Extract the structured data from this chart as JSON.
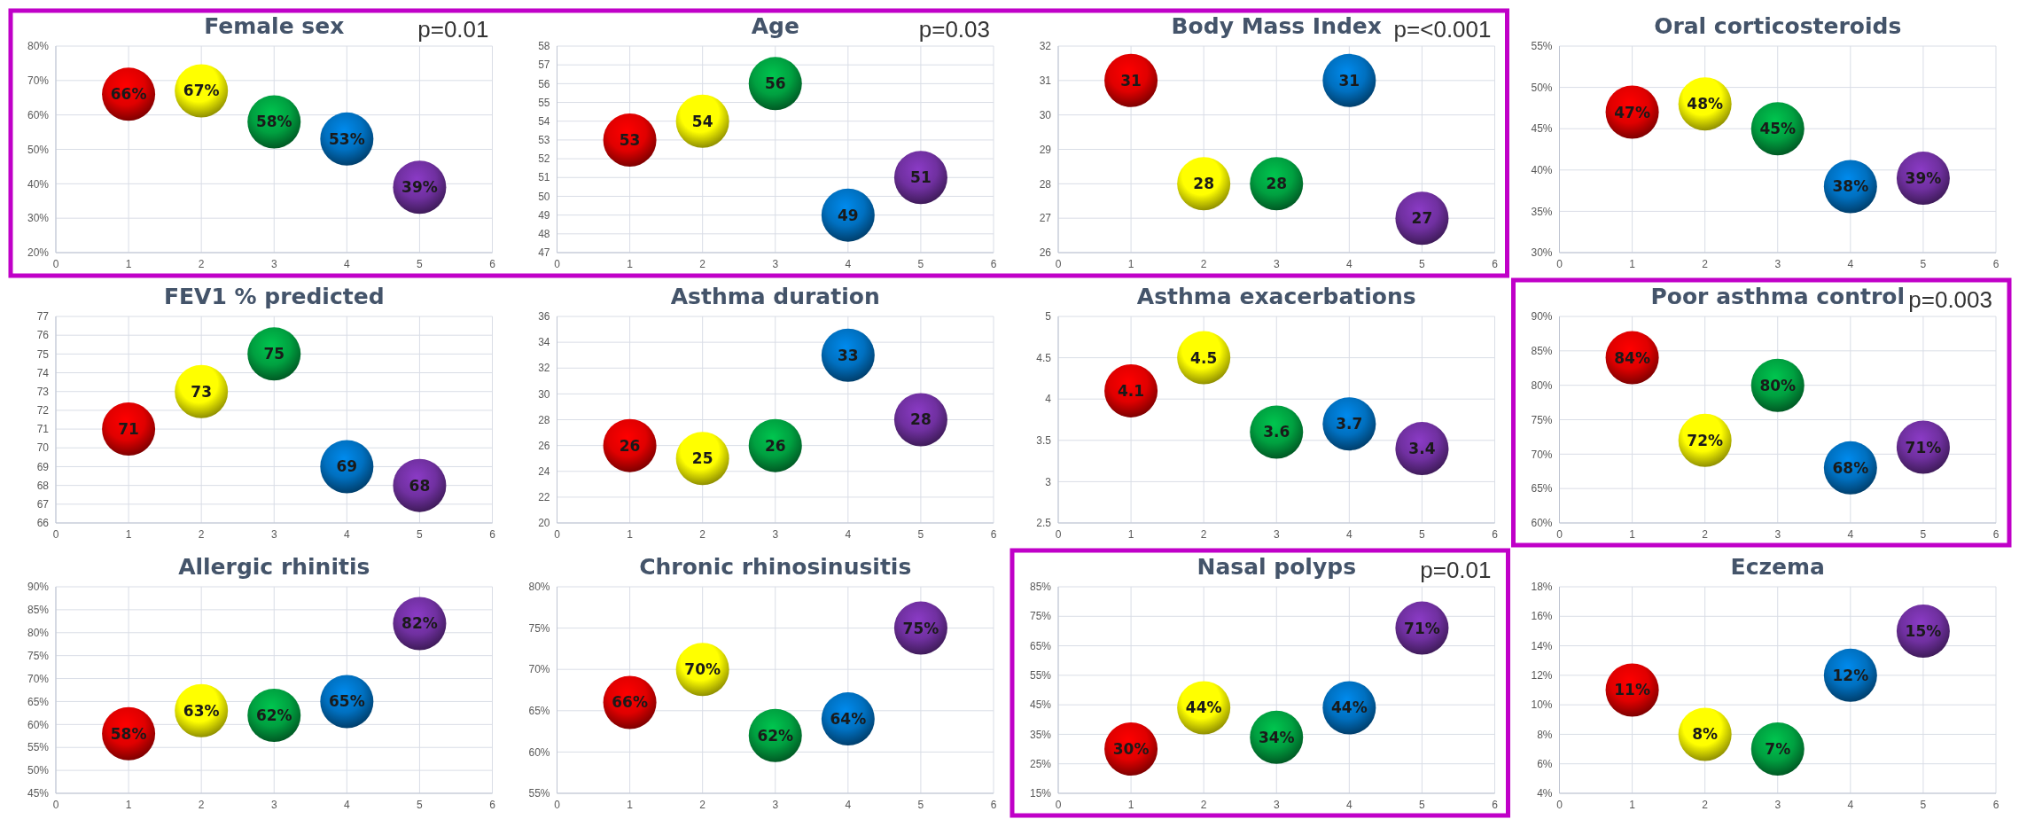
{
  "chart_data": [
    {
      "type": "scatter",
      "title": "Female sex",
      "x": [
        1,
        2,
        3,
        4,
        5
      ],
      "xlim": [
        0,
        6
      ],
      "xticks": [
        0,
        1,
        2,
        3,
        4,
        5,
        6
      ],
      "ylim": [
        20,
        80
      ],
      "yticks": [
        {
          "value": 20,
          "label": "20%"
        },
        {
          "value": 30,
          "label": "30%"
        },
        {
          "value": 40,
          "label": "40%"
        },
        {
          "value": 50,
          "label": "50%"
        },
        {
          "value": 60,
          "label": "60%"
        },
        {
          "value": 70,
          "label": "70%"
        },
        {
          "value": 80,
          "label": "80%"
        }
      ],
      "grid": true,
      "marker": "circle",
      "annotations": [
        "p=0.01"
      ],
      "series": [
        {
          "colors": [
            "#e00000",
            "#ffff00",
            "#00a040",
            "#0070c0",
            "#7030a0"
          ],
          "values": [
            66,
            67,
            58,
            53,
            39
          ],
          "value_labels": [
            "66%",
            "67%",
            "58%",
            "53%",
            "39%"
          ]
        }
      ]
    },
    {
      "type": "scatter",
      "title": "Age",
      "x": [
        1,
        2,
        3,
        4,
        5
      ],
      "xlim": [
        0,
        6
      ],
      "xticks": [
        0,
        1,
        2,
        3,
        4,
        5,
        6
      ],
      "ylim": [
        47,
        58
      ],
      "yticks": [
        47,
        48,
        49,
        50,
        51,
        52,
        53,
        54,
        55,
        56,
        57,
        58
      ],
      "grid": true,
      "marker": "circle",
      "annotations": [
        "p=0.03"
      ],
      "series": [
        {
          "colors": [
            "#e00000",
            "#ffff00",
            "#00a040",
            "#0070c0",
            "#7030a0"
          ],
          "values": [
            53,
            54,
            56,
            49,
            51
          ],
          "value_labels": [
            "53",
            "54",
            "56",
            "49",
            "51"
          ]
        }
      ]
    },
    {
      "type": "scatter",
      "title": "Body Mass Index",
      "x": [
        1,
        2,
        3,
        4,
        5
      ],
      "xlim": [
        0,
        6
      ],
      "xticks": [
        0,
        1,
        2,
        3,
        4,
        5,
        6
      ],
      "ylim": [
        26,
        32
      ],
      "yticks": [
        26,
        27,
        28,
        29,
        30,
        31,
        32
      ],
      "grid": true,
      "marker": "circle",
      "annotations": [
        "p=<0.001"
      ],
      "series": [
        {
          "colors": [
            "#e00000",
            "#ffff00",
            "#00a040",
            "#0070c0",
            "#7030a0"
          ],
          "values": [
            31,
            28,
            28,
            31,
            27
          ],
          "value_labels": [
            "31",
            "28",
            "28",
            "31",
            "27"
          ]
        }
      ]
    },
    {
      "type": "scatter",
      "title": "Oral corticosteroids",
      "x": [
        1,
        2,
        3,
        4,
        5
      ],
      "xlim": [
        0,
        6
      ],
      "xticks": [
        0,
        1,
        2,
        3,
        4,
        5,
        6
      ],
      "ylim": [
        30,
        55
      ],
      "yticks": [
        {
          "value": 30,
          "label": "30%"
        },
        {
          "value": 35,
          "label": "35%"
        },
        {
          "value": 40,
          "label": "40%"
        },
        {
          "value": 45,
          "label": "45%"
        },
        {
          "value": 50,
          "label": "50%"
        },
        {
          "value": 55,
          "label": "55%"
        }
      ],
      "grid": true,
      "marker": "circle",
      "series": [
        {
          "colors": [
            "#e00000",
            "#ffff00",
            "#00a040",
            "#0070c0",
            "#7030a0"
          ],
          "values": [
            47,
            48,
            45,
            38,
            39
          ],
          "value_labels": [
            "47%",
            "48%",
            "45%",
            "38%",
            "39%"
          ]
        }
      ]
    },
    {
      "type": "scatter",
      "title": "FEV1 % predicted",
      "x": [
        1,
        2,
        3,
        4,
        5
      ],
      "xlim": [
        0,
        6
      ],
      "xticks": [
        0,
        1,
        2,
        3,
        4,
        5,
        6
      ],
      "ylim": [
        66,
        77
      ],
      "yticks": [
        66,
        67,
        68,
        69,
        70,
        71,
        72,
        73,
        74,
        75,
        76,
        77
      ],
      "grid": true,
      "marker": "circle",
      "series": [
        {
          "colors": [
            "#e00000",
            "#ffff00",
            "#00a040",
            "#0070c0",
            "#7030a0"
          ],
          "values": [
            71,
            73,
            75,
            69,
            68
          ],
          "value_labels": [
            "71",
            "73",
            "75",
            "69",
            "68"
          ]
        }
      ]
    },
    {
      "type": "scatter",
      "title": "Asthma duration",
      "x": [
        1,
        2,
        3,
        4,
        5
      ],
      "xlim": [
        0,
        6
      ],
      "xticks": [
        0,
        1,
        2,
        3,
        4,
        5,
        6
      ],
      "ylim": [
        20,
        36
      ],
      "yticks": [
        20,
        22,
        24,
        26,
        28,
        30,
        32,
        34,
        36
      ],
      "grid": true,
      "marker": "circle",
      "series": [
        {
          "colors": [
            "#e00000",
            "#ffff00",
            "#00a040",
            "#0070c0",
            "#7030a0"
          ],
          "values": [
            26,
            25,
            26,
            33,
            28
          ],
          "value_labels": [
            "26",
            "25",
            "26",
            "33",
            "28"
          ]
        }
      ]
    },
    {
      "type": "scatter",
      "title": "Asthma exacerbations",
      "x": [
        1,
        2,
        3,
        4,
        5
      ],
      "xlim": [
        0,
        6
      ],
      "xticks": [
        0,
        1,
        2,
        3,
        4,
        5,
        6
      ],
      "ylim": [
        2.5,
        5
      ],
      "yticks": [
        2.5,
        3,
        3.5,
        4,
        4.5,
        5
      ],
      "grid": true,
      "marker": "circle",
      "series": [
        {
          "colors": [
            "#e00000",
            "#ffff00",
            "#00a040",
            "#0070c0",
            "#7030a0"
          ],
          "values": [
            4.1,
            4.5,
            3.6,
            3.7,
            3.4
          ],
          "value_labels": [
            "4.1",
            "4.5",
            "3.6",
            "3.7",
            "3.4"
          ]
        }
      ]
    },
    {
      "type": "scatter",
      "title": "Poor asthma control",
      "x": [
        1,
        2,
        3,
        4,
        5
      ],
      "xlim": [
        0,
        6
      ],
      "xticks": [
        0,
        1,
        2,
        3,
        4,
        5,
        6
      ],
      "ylim": [
        60,
        90
      ],
      "yticks": [
        {
          "value": 60,
          "label": "60%"
        },
        {
          "value": 65,
          "label": "65%"
        },
        {
          "value": 70,
          "label": "70%"
        },
        {
          "value": 75,
          "label": "75%"
        },
        {
          "value": 80,
          "label": "80%"
        },
        {
          "value": 85,
          "label": "85%"
        },
        {
          "value": 90,
          "label": "90%"
        }
      ],
      "grid": true,
      "marker": "circle",
      "annotations": [
        "p=0.003"
      ],
      "series": [
        {
          "colors": [
            "#e00000",
            "#ffff00",
            "#00a040",
            "#0070c0",
            "#7030a0"
          ],
          "values": [
            84,
            72,
            80,
            68,
            71
          ],
          "value_labels": [
            "84%",
            "72%",
            "80%",
            "68%",
            "71%"
          ]
        }
      ]
    },
    {
      "type": "scatter",
      "title": "Allergic rhinitis",
      "x": [
        1,
        2,
        3,
        4,
        5
      ],
      "xlim": [
        0,
        6
      ],
      "xticks": [
        0,
        1,
        2,
        3,
        4,
        5,
        6
      ],
      "ylim": [
        45,
        90
      ],
      "yticks": [
        {
          "value": 45,
          "label": "45%"
        },
        {
          "value": 50,
          "label": "50%"
        },
        {
          "value": 55,
          "label": "55%"
        },
        {
          "value": 60,
          "label": "60%"
        },
        {
          "value": 65,
          "label": "65%"
        },
        {
          "value": 70,
          "label": "70%"
        },
        {
          "value": 75,
          "label": "75%"
        },
        {
          "value": 80,
          "label": "80%"
        },
        {
          "value": 85,
          "label": "85%"
        },
        {
          "value": 90,
          "label": "90%"
        }
      ],
      "grid": true,
      "marker": "circle",
      "series": [
        {
          "colors": [
            "#e00000",
            "#ffff00",
            "#00a040",
            "#0070c0",
            "#7030a0"
          ],
          "values": [
            58,
            63,
            62,
            65,
            82
          ],
          "value_labels": [
            "58%",
            "63%",
            "62%",
            "65%",
            "82%"
          ]
        }
      ]
    },
    {
      "type": "scatter",
      "title": "Chronic rhinosinusitis",
      "x": [
        1,
        2,
        3,
        4,
        5
      ],
      "xlim": [
        0,
        6
      ],
      "xticks": [
        0,
        1,
        2,
        3,
        4,
        5,
        6
      ],
      "ylim": [
        55,
        80
      ],
      "yticks": [
        {
          "value": 55,
          "label": "55%"
        },
        {
          "value": 60,
          "label": "60%"
        },
        {
          "value": 65,
          "label": "65%"
        },
        {
          "value": 70,
          "label": "70%"
        },
        {
          "value": 75,
          "label": "75%"
        },
        {
          "value": 80,
          "label": "80%"
        }
      ],
      "grid": true,
      "marker": "circle",
      "series": [
        {
          "colors": [
            "#e00000",
            "#ffff00",
            "#00a040",
            "#0070c0",
            "#7030a0"
          ],
          "values": [
            66,
            70,
            62,
            64,
            75
          ],
          "value_labels": [
            "66%",
            "70%",
            "62%",
            "64%",
            "75%"
          ]
        }
      ]
    },
    {
      "type": "scatter",
      "title": "Nasal polyps",
      "x": [
        1,
        2,
        3,
        4,
        5
      ],
      "xlim": [
        0,
        6
      ],
      "xticks": [
        0,
        1,
        2,
        3,
        4,
        5,
        6
      ],
      "ylim": [
        15,
        85
      ],
      "yticks": [
        {
          "value": 15,
          "label": "15%"
        },
        {
          "value": 25,
          "label": "25%"
        },
        {
          "value": 35,
          "label": "35%"
        },
        {
          "value": 45,
          "label": "45%"
        },
        {
          "value": 55,
          "label": "55%"
        },
        {
          "value": 65,
          "label": "65%"
        },
        {
          "value": 75,
          "label": "75%"
        },
        {
          "value": 85,
          "label": "85%"
        }
      ],
      "grid": true,
      "marker": "circle",
      "annotations": [
        "p=0.01"
      ],
      "series": [
        {
          "colors": [
            "#e00000",
            "#ffff00",
            "#00a040",
            "#0070c0",
            "#7030a0"
          ],
          "values": [
            30,
            44,
            34,
            44,
            71
          ],
          "value_labels": [
            "30%",
            "44%",
            "34%",
            "44%",
            "71%"
          ]
        }
      ]
    },
    {
      "type": "scatter",
      "title": "Eczema",
      "x": [
        1,
        2,
        3,
        4,
        5
      ],
      "xlim": [
        0,
        6
      ],
      "xticks": [
        0,
        1,
        2,
        3,
        4,
        5,
        6
      ],
      "ylim": [
        4,
        18
      ],
      "yticks": [
        {
          "value": 4,
          "label": "4%"
        },
        {
          "value": 6,
          "label": "6%"
        },
        {
          "value": 8,
          "label": "8%"
        },
        {
          "value": 10,
          "label": "10%"
        },
        {
          "value": 12,
          "label": "12%"
        },
        {
          "value": 14,
          "label": "14%"
        },
        {
          "value": 16,
          "label": "16%"
        },
        {
          "value": 18,
          "label": "18%"
        }
      ],
      "grid": true,
      "marker": "circle",
      "series": [
        {
          "colors": [
            "#e00000",
            "#ffff00",
            "#00a040",
            "#0070c0",
            "#7030a0"
          ],
          "values": [
            11,
            8,
            7,
            12,
            15
          ],
          "value_labels": [
            "11%",
            "8%",
            "7%",
            "12%",
            "15%"
          ]
        }
      ]
    }
  ]
}
